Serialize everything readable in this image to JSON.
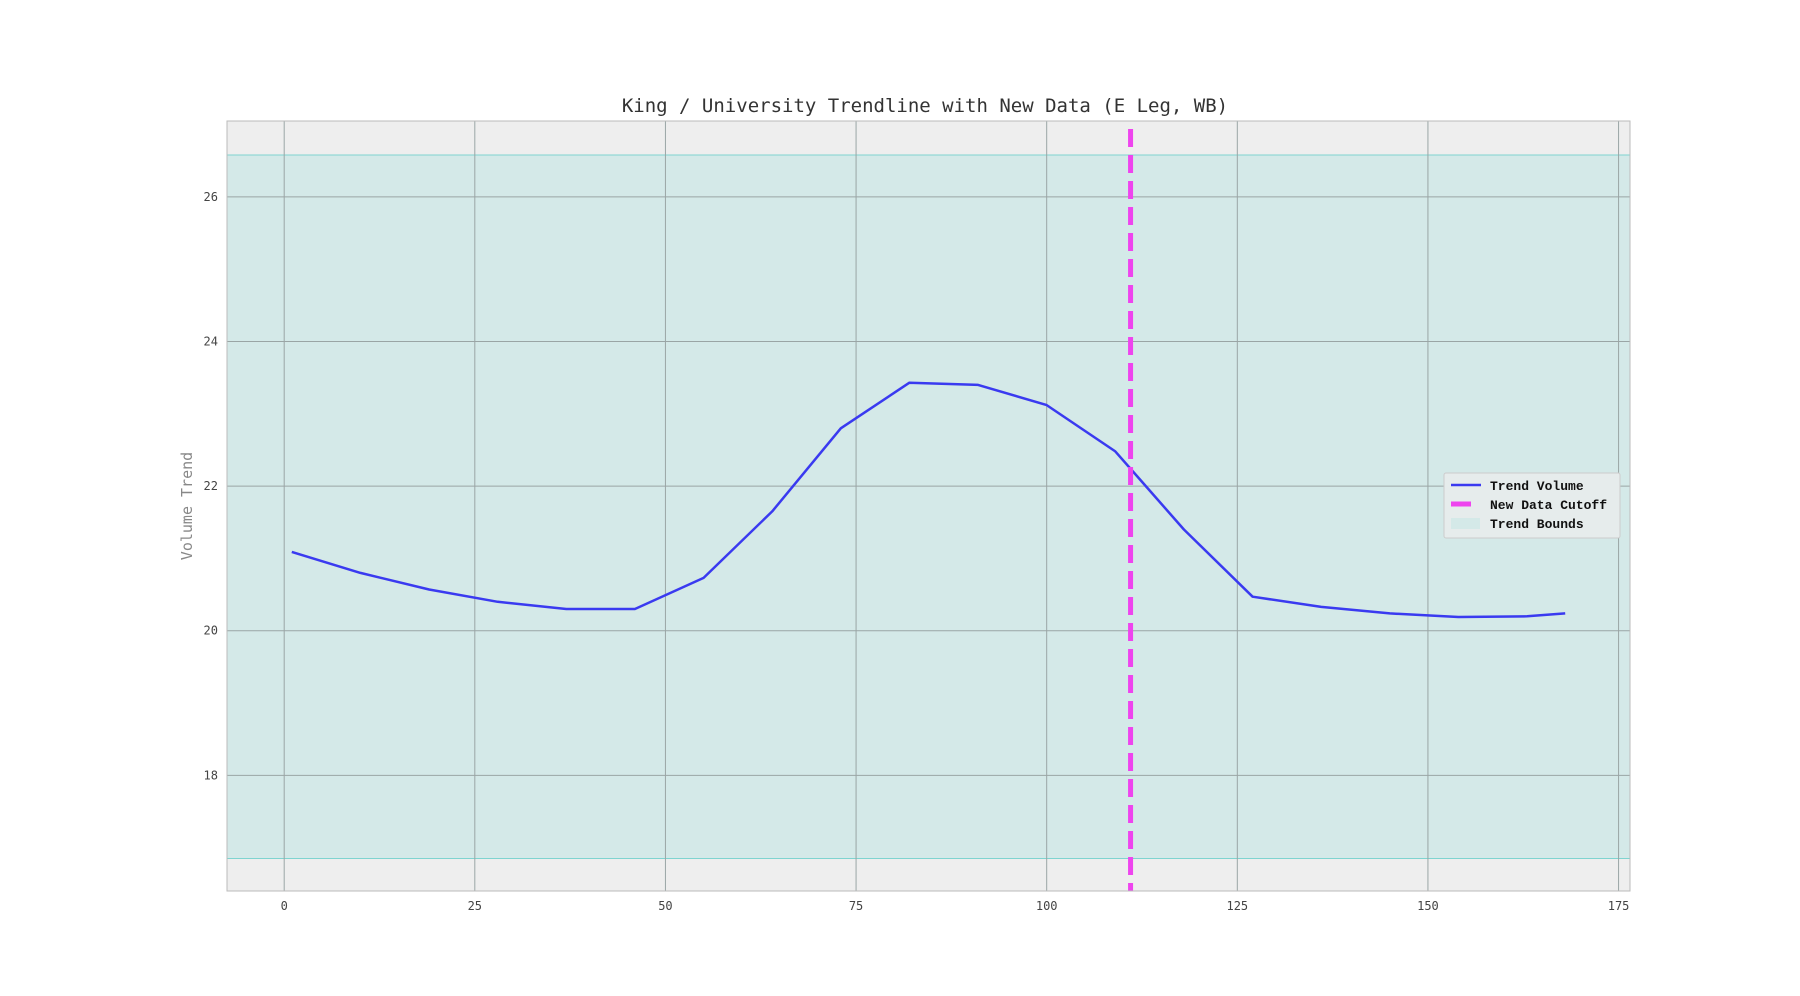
{
  "chart_data": {
    "type": "line",
    "title": "King / University Trendline with New Data (E Leg, WB)",
    "xlabel": "",
    "ylabel": "Volume Trend",
    "xlim": [
      -7.5,
      176.5
    ],
    "ylim": [
      16.4,
      27.05
    ],
    "xticks": [
      0,
      25,
      50,
      75,
      100,
      125,
      150,
      175
    ],
    "yticks": [
      18,
      20,
      22,
      24,
      26
    ],
    "grid": true,
    "legend_position": "center-right",
    "series": [
      {
        "name": "Trend Volume",
        "color": "#3a3af0",
        "x": [
          1,
          10,
          19,
          28,
          37,
          46,
          55,
          64,
          73,
          82,
          91,
          100,
          109,
          118,
          127,
          136,
          145,
          154,
          163,
          168
        ],
        "y": [
          21.09,
          20.8,
          20.57,
          20.4,
          20.3,
          20.3,
          20.73,
          21.65,
          22.8,
          23.43,
          23.4,
          23.12,
          22.48,
          21.4,
          20.47,
          20.33,
          20.24,
          20.19,
          20.2,
          20.24
        ]
      }
    ],
    "cutoff": {
      "name": "New Data Cutoff",
      "x": 111,
      "color": "#ee44ee"
    },
    "bounds": {
      "name": "Trend Bounds",
      "lower": 16.85,
      "upper": 26.58,
      "color": "#d4e9e8",
      "edge_color": "#7fd4d0"
    }
  }
}
